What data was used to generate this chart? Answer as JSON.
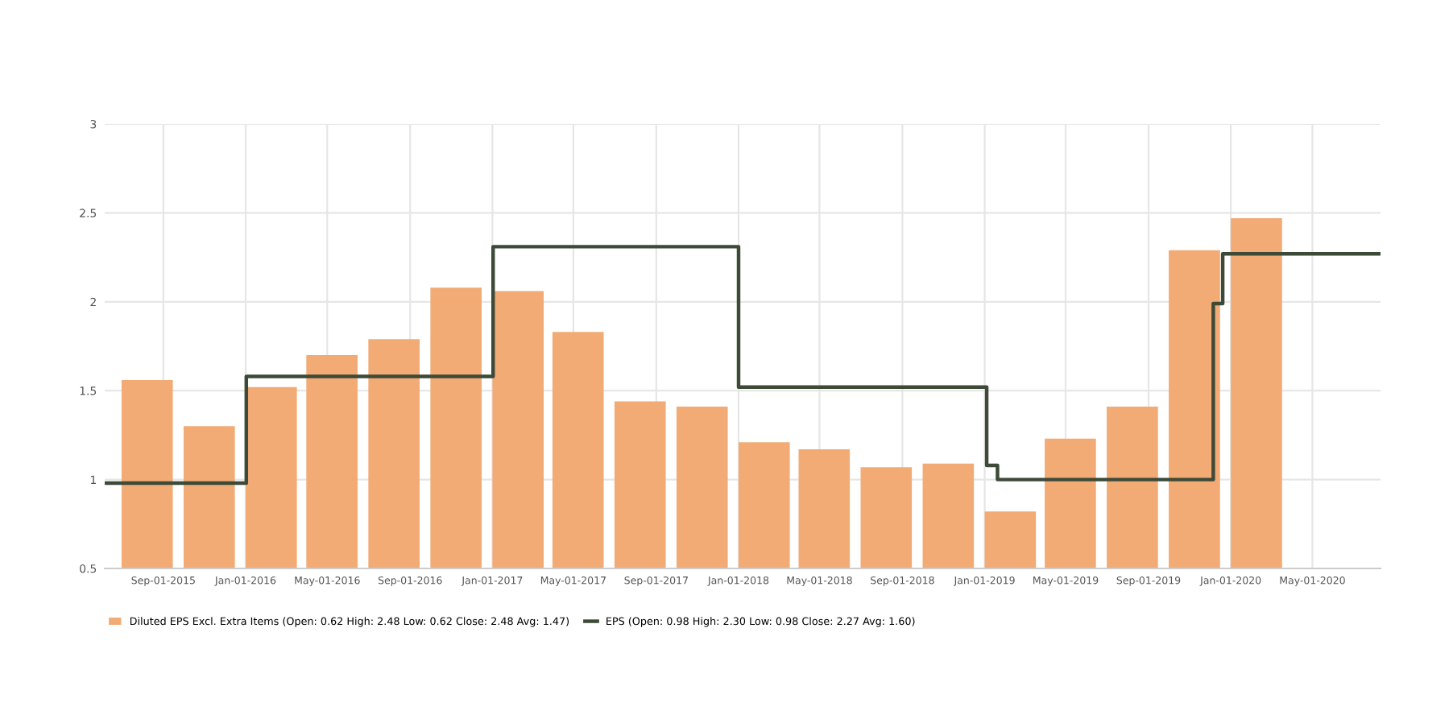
{
  "chart_data": {
    "type": "bar",
    "x": [
      "2015-08-08",
      "2015-11-08",
      "2016-02-08",
      "2016-05-08",
      "2016-08-08",
      "2016-11-08",
      "2017-02-08",
      "2017-05-08",
      "2017-08-08",
      "2017-11-08",
      "2018-02-08",
      "2018-05-08",
      "2018-08-08",
      "2018-11-08",
      "2019-02-08",
      "2019-05-08",
      "2019-08-08",
      "2019-11-08",
      "2020-02-08"
    ],
    "series": [
      {
        "name": "Diluted EPS Excl. Extra Items (Open: 0.62 High: 2.48 Low: 0.62 Close: 2.48 Avg: 1.47)",
        "color": "#f2ab74",
        "values": [
          1.56,
          1.3,
          1.52,
          1.7,
          1.79,
          2.08,
          2.06,
          1.83,
          1.44,
          1.41,
          1.21,
          1.17,
          1.07,
          1.09,
          0.82,
          1.23,
          1.41,
          2.29,
          2.47
        ]
      },
      {
        "name": "EPS (Open: 0.98 High: 2.30 Low: 0.98 Close: 2.27 Avg: 1.60)",
        "type": "line",
        "color": "#3d4a37",
        "x": [
          "2015-06-06",
          "2016-01-02",
          "2016-01-02",
          "2017-01-02",
          "2017-01-02",
          "2018-01-01",
          "2018-01-01",
          "2019-01-04",
          "2019-01-04",
          "2019-01-20",
          "2019-01-20",
          "2019-12-06",
          "2019-12-06",
          "2019-12-20",
          "2019-12-20",
          "2020-08-10"
        ],
        "values": [
          0.98,
          0.98,
          1.58,
          1.58,
          2.31,
          2.31,
          1.52,
          1.52,
          1.08,
          1.08,
          1.0,
          1.0,
          1.99,
          1.99,
          2.27,
          2.27
        ]
      }
    ],
    "xlim": [
      "2015-06-06",
      "2020-08-10"
    ],
    "xticks": [
      {
        "value": "2015-09-01",
        "label": "Sep-01-2015"
      },
      {
        "value": "2016-01-01",
        "label": "Jan-01-2016"
      },
      {
        "value": "2016-05-01",
        "label": "May-01-2016"
      },
      {
        "value": "2016-09-01",
        "label": "Sep-01-2016"
      },
      {
        "value": "2017-01-01",
        "label": "Jan-01-2017"
      },
      {
        "value": "2017-05-01",
        "label": "May-01-2017"
      },
      {
        "value": "2017-09-01",
        "label": "Sep-01-2017"
      },
      {
        "value": "2018-01-01",
        "label": "Jan-01-2018"
      },
      {
        "value": "2018-05-01",
        "label": "May-01-2018"
      },
      {
        "value": "2018-09-01",
        "label": "Sep-01-2018"
      },
      {
        "value": "2019-01-01",
        "label": "Jan-01-2019"
      },
      {
        "value": "2019-05-01",
        "label": "May-01-2019"
      },
      {
        "value": "2019-09-01",
        "label": "Sep-01-2019"
      },
      {
        "value": "2020-01-01",
        "label": "Jan-01-2020"
      },
      {
        "value": "2020-05-01",
        "label": "May-01-2020"
      }
    ],
    "ylim": [
      0.5,
      3
    ],
    "yticks": [
      0.5,
      1,
      1.5,
      2,
      2.5,
      3
    ],
    "grid": true,
    "legend": "bottom"
  }
}
